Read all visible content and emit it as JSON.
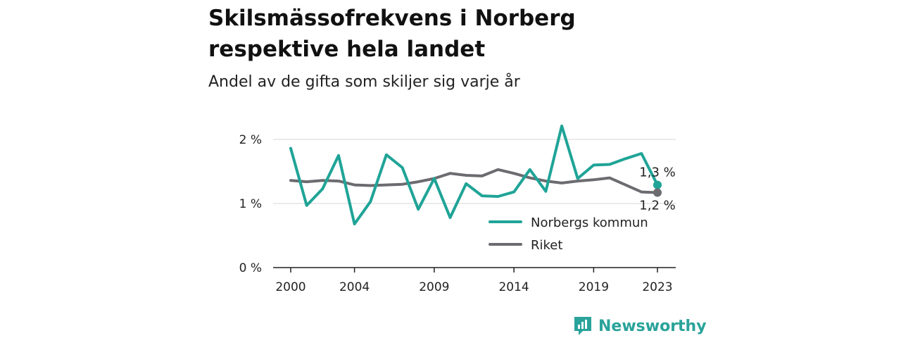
{
  "chart_data": {
    "type": "line",
    "title": "Skilsmässofrekvens i Norberg respektive hela landet",
    "subtitle": "Andel av de gifta som skiljer sig varje år",
    "x": [
      2000,
      2001,
      2002,
      2003,
      2004,
      2005,
      2006,
      2007,
      2008,
      2009,
      2010,
      2011,
      2012,
      2013,
      2014,
      2015,
      2016,
      2017,
      2018,
      2019,
      2020,
      2021,
      2022,
      2023
    ],
    "x_ticks": [
      "2000",
      "2004",
      "2009",
      "2014",
      "2019",
      "2023"
    ],
    "y_ticks": [
      "0 %",
      "1 %",
      "2 %"
    ],
    "ylim": [
      0,
      2.2
    ],
    "grid": true,
    "legend_position": "bottom-right",
    "series": [
      {
        "name": "Norbergs kommun",
        "color": "#1fa497",
        "values": [
          1.86,
          0.97,
          1.23,
          1.75,
          0.68,
          1.03,
          1.76,
          1.56,
          0.91,
          1.39,
          0.78,
          1.31,
          1.12,
          1.11,
          1.18,
          1.53,
          1.19,
          2.21,
          1.39,
          1.6,
          1.61,
          1.7,
          1.78,
          1.29
        ],
        "end_label": "1,3 %"
      },
      {
        "name": "Riket",
        "color": "#6c6b70",
        "values": [
          1.36,
          1.34,
          1.36,
          1.35,
          1.29,
          1.28,
          1.29,
          1.3,
          1.34,
          1.39,
          1.47,
          1.44,
          1.43,
          1.53,
          1.47,
          1.4,
          1.35,
          1.32,
          1.35,
          1.37,
          1.4,
          1.29,
          1.18,
          1.17
        ],
        "end_label": "1,2 %"
      }
    ]
  },
  "brand": {
    "name": "Newsworthy",
    "icon": "newsworthy-logo-icon",
    "color": "#2aa39a"
  }
}
